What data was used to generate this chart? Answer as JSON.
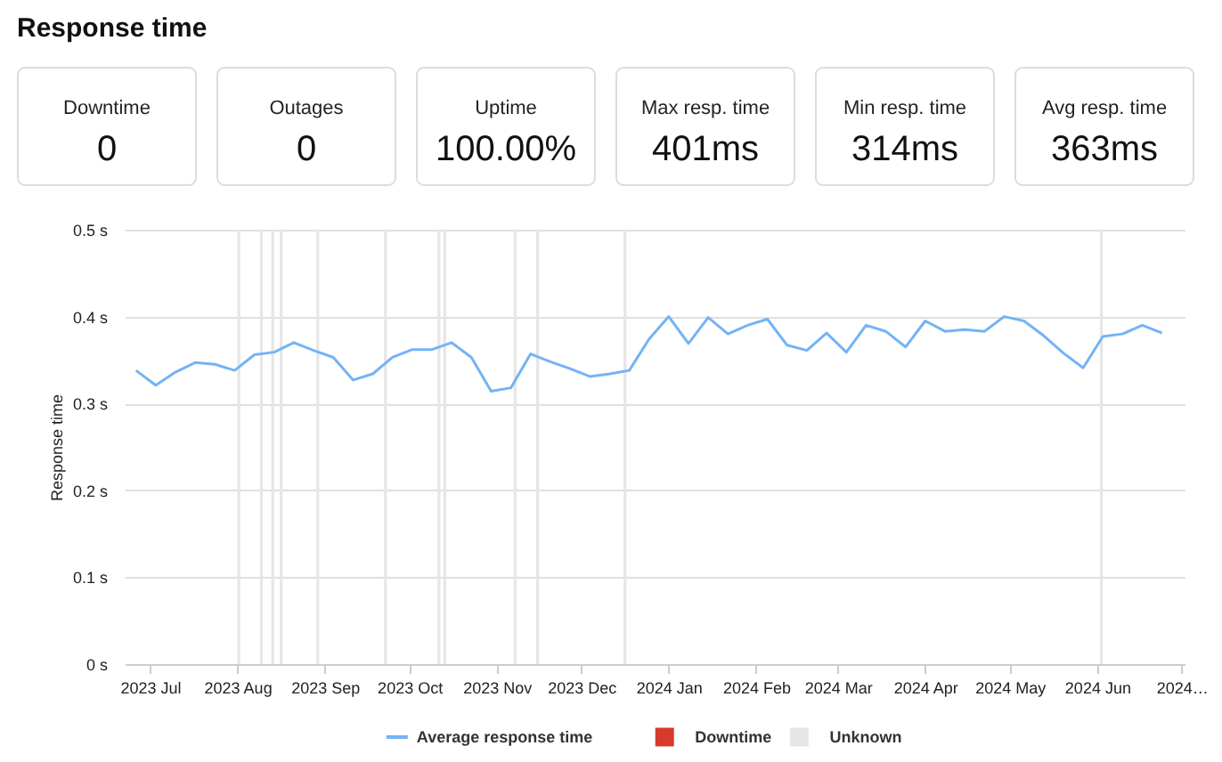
{
  "chart_data": [
    {
      "type": "other",
      "title": "Response time",
      "categories": [
        "Downtime",
        "Outages",
        "Uptime",
        "Max resp. time",
        "Min resp. time",
        "Avg resp. time"
      ],
      "value_labels": [
        "0",
        "0",
        "100.00%",
        "401ms",
        "314ms",
        "363ms"
      ]
    },
    {
      "type": "line",
      "ylabel": "Response time",
      "x": [
        "2023-06-26",
        "2023-07-03",
        "2023-07-10",
        "2023-07-17",
        "2023-07-24",
        "2023-07-31",
        "2023-08-07",
        "2023-08-14",
        "2023-08-21",
        "2023-08-28",
        "2023-09-04",
        "2023-09-11",
        "2023-09-18",
        "2023-09-25",
        "2023-10-02",
        "2023-10-09",
        "2023-10-16",
        "2023-10-23",
        "2023-10-30",
        "2023-11-06",
        "2023-11-13",
        "2023-11-20",
        "2023-11-27",
        "2023-12-04",
        "2023-12-11",
        "2023-12-18",
        "2023-12-25",
        "2024-01-01",
        "2024-01-08",
        "2024-01-15",
        "2024-01-22",
        "2024-01-29",
        "2024-02-05",
        "2024-02-12",
        "2024-02-19",
        "2024-02-26",
        "2024-03-04",
        "2024-03-11",
        "2024-03-18",
        "2024-03-25",
        "2024-04-01",
        "2024-04-08",
        "2024-04-15",
        "2024-04-22",
        "2024-04-29",
        "2024-05-06",
        "2024-05-13",
        "2024-05-20",
        "2024-05-27",
        "2024-06-03",
        "2024-06-10",
        "2024-06-17",
        "2024-06-24"
      ],
      "series": [
        {
          "name": "Average response time",
          "color": "#74b3f5",
          "values": [
            0.338,
            0.321,
            0.336,
            0.347,
            0.345,
            0.338,
            0.356,
            0.359,
            0.37,
            0.361,
            0.353,
            0.327,
            0.334,
            0.353,
            0.362,
            0.362,
            0.37,
            0.353,
            0.314,
            0.318,
            0.357,
            0.348,
            0.34,
            0.331,
            0.334,
            0.338,
            0.374,
            0.4,
            0.369,
            0.399,
            0.38,
            0.39,
            0.397,
            0.367,
            0.361,
            0.381,
            0.359,
            0.39,
            0.383,
            0.365,
            0.395,
            0.383,
            0.385,
            0.383,
            0.4,
            0.395,
            0.378,
            0.358,
            0.341,
            0.377,
            0.38,
            0.39,
            0.381
          ]
        },
        {
          "name": "Downtime",
          "type": "bar",
          "color": "#d63a2b",
          "values": [
            null,
            null,
            null,
            null,
            null,
            null,
            null,
            null,
            null,
            null,
            null,
            null,
            null,
            null,
            null,
            null,
            null,
            null,
            null,
            null,
            null,
            null,
            null,
            null,
            null,
            null,
            null,
            null,
            null,
            null,
            null,
            null,
            null,
            null,
            null,
            null,
            null,
            null,
            null,
            null,
            null,
            null,
            null,
            null,
            null,
            null,
            null,
            null,
            null,
            null,
            null,
            null,
            null
          ]
        }
      ],
      "xlim": [
        "2023-06-22",
        "2024-07-02"
      ],
      "xticks": [
        {
          "value": "2023-07-01",
          "label": "2023 Jul"
        },
        {
          "value": "2023-08-01",
          "label": "2023 Aug"
        },
        {
          "value": "2023-09-01",
          "label": "2023 Sep"
        },
        {
          "value": "2023-10-01",
          "label": "2023 Oct"
        },
        {
          "value": "2023-11-01",
          "label": "2023 Nov"
        },
        {
          "value": "2023-12-01",
          "label": "2023 Dec"
        },
        {
          "value": "2024-01-01",
          "label": "2024 Jan"
        },
        {
          "value": "2024-02-01",
          "label": "2024 Feb"
        },
        {
          "value": "2024-03-01",
          "label": "2024 Mar"
        },
        {
          "value": "2024-04-01",
          "label": "2024 Apr"
        },
        {
          "value": "2024-05-01",
          "label": "2024 May"
        },
        {
          "value": "2024-06-01",
          "label": "2024 Jun"
        },
        {
          "value": "2024-07-01",
          "label": "2024…"
        }
      ],
      "ylim": [
        0,
        0.5
      ],
      "yticks": [
        {
          "value": 0,
          "label": "0 s"
        },
        {
          "value": 0.1,
          "label": "0.1 s"
        },
        {
          "value": 0.2,
          "label": "0.2 s"
        },
        {
          "value": 0.3,
          "label": "0.3 s"
        },
        {
          "value": 0.4,
          "label": "0.4 s"
        },
        {
          "value": 0.5,
          "label": "0.5 s"
        }
      ],
      "bands": [
        {
          "axis": "x",
          "from": "2023-08-01",
          "to": "2023-08-02",
          "label": "Unknown",
          "color": "#e6e6e6"
        },
        {
          "axis": "x",
          "from": "2023-08-09",
          "to": "2023-08-10",
          "color": "#e6e6e6"
        },
        {
          "axis": "x",
          "from": "2023-08-13",
          "to": "2023-08-14",
          "color": "#e6e6e6"
        },
        {
          "axis": "x",
          "from": "2023-08-16",
          "to": "2023-08-17",
          "color": "#e6e6e6"
        },
        {
          "axis": "x",
          "from": "2023-08-29",
          "to": "2023-08-30",
          "color": "#e6e6e6"
        },
        {
          "axis": "x",
          "from": "2023-09-22",
          "to": "2023-09-23",
          "color": "#e6e6e6"
        },
        {
          "axis": "x",
          "from": "2023-10-11",
          "to": "2023-10-12",
          "color": "#e6e6e6"
        },
        {
          "axis": "x",
          "from": "2023-10-13",
          "to": "2023-10-14",
          "color": "#e6e6e6"
        },
        {
          "axis": "x",
          "from": "2023-11-07",
          "to": "2023-11-08",
          "color": "#e6e6e6"
        },
        {
          "axis": "x",
          "from": "2023-11-15",
          "to": "2023-11-16",
          "color": "#e6e6e6"
        },
        {
          "axis": "x",
          "from": "2023-12-16",
          "to": "2023-12-17",
          "color": "#e6e6e6"
        },
        {
          "axis": "x",
          "from": "2024-06-02",
          "to": "2024-06-03",
          "color": "#e6e6e6"
        }
      ],
      "grid": "y",
      "legend": "bottom"
    }
  ]
}
